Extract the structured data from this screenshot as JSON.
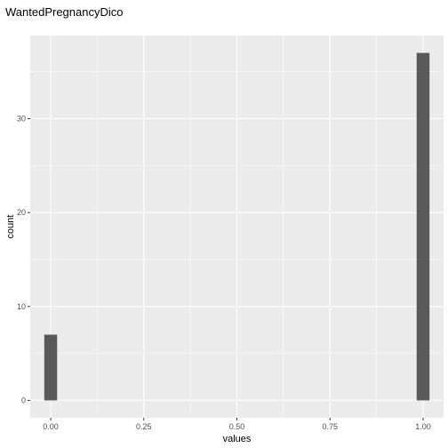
{
  "chart_data": {
    "type": "bar",
    "title": "WantedPregnancyDico",
    "xlabel": "values",
    "ylabel": "count",
    "x": [
      0.0,
      1.0
    ],
    "values": [
      7,
      37
    ],
    "xlim": [
      -0.055,
      1.055
    ],
    "ylim": [
      -1.85,
      38.85
    ],
    "x_ticks": [
      "0.00",
      "0.25",
      "0.50",
      "0.75",
      "1.00"
    ],
    "y_ticks": [
      "0",
      "10",
      "20",
      "30"
    ],
    "grid": true,
    "bar_color": "#595959",
    "panel_color": "#ebebeb",
    "grid_color": "#ffffff"
  }
}
